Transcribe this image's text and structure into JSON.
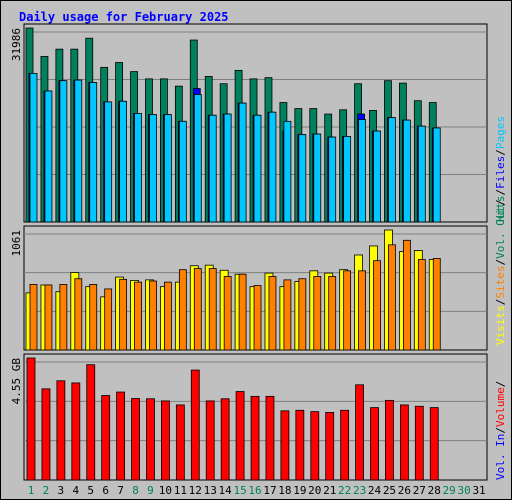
{
  "title": "Daily usage for February 2025",
  "colors": {
    "hits": "#00805c",
    "files": "#0000ff",
    "pages": "#00c8ff",
    "visits": "#ffff00",
    "sites": "#ff8000",
    "kbytes": "#ff0000",
    "weekend_label": "#00805c",
    "weekday_label": "#000000"
  },
  "chart_data": [
    {
      "type": "bar",
      "name": "hits-files-pages",
      "categories": [
        "1",
        "2",
        "3",
        "4",
        "5",
        "6",
        "7",
        "8",
        "9",
        "10",
        "11",
        "12",
        "13",
        "14",
        "15",
        "16",
        "17",
        "18",
        "19",
        "20",
        "21",
        "22",
        "23",
        "24",
        "25",
        "26",
        "27",
        "28",
        "29",
        "30",
        "31"
      ],
      "y_max_label": "31986",
      "ylim": [
        0,
        31986
      ],
      "series": [
        {
          "name": "Hits",
          "values": [
            31986,
            27300,
            28500,
            28500,
            30300,
            25500,
            26300,
            24800,
            23600,
            23600,
            22400,
            30000,
            24000,
            22800,
            25000,
            23600,
            23800,
            19700,
            18700,
            18700,
            17800,
            18500,
            22800,
            18400,
            23300,
            22900,
            20000,
            19700,
            null,
            null,
            null
          ]
        },
        {
          "name": "Files",
          "values": [
            24500,
            21600,
            23300,
            23400,
            23000,
            19800,
            19900,
            17900,
            17700,
            17700,
            16600,
            22000,
            17600,
            17800,
            19600,
            17600,
            18100,
            15000,
            14400,
            14500,
            14000,
            14100,
            17800,
            15000,
            17200,
            16800,
            15800,
            15500,
            null,
            null,
            null
          ]
        },
        {
          "name": "Pages",
          "values": [
            24500,
            21600,
            23300,
            23400,
            23000,
            19800,
            19900,
            17900,
            17700,
            17700,
            16600,
            21000,
            17600,
            17800,
            19600,
            17600,
            18100,
            16600,
            14400,
            14500,
            14000,
            14100,
            16900,
            15000,
            17200,
            16800,
            15800,
            15500,
            null,
            null,
            null
          ]
        }
      ]
    },
    {
      "type": "bar",
      "name": "visits-sites",
      "categories": [
        "1",
        "2",
        "3",
        "4",
        "5",
        "6",
        "7",
        "8",
        "9",
        "10",
        "11",
        "12",
        "13",
        "14",
        "15",
        "16",
        "17",
        "18",
        "19",
        "20",
        "21",
        "22",
        "23",
        "24",
        "25",
        "26",
        "27",
        "28",
        "29",
        "30",
        "31"
      ],
      "y_max_label": "1061",
      "ylim": [
        0,
        1061
      ],
      "series": [
        {
          "name": "Visits",
          "values": [
            505,
            575,
            515,
            685,
            560,
            470,
            645,
            615,
            620,
            560,
            600,
            745,
            750,
            705,
            670,
            560,
            680,
            560,
            605,
            700,
            680,
            710,
            840,
            920,
            1061,
            870,
            880,
            800,
            null,
            null,
            null
          ]
        },
        {
          "name": "Sites",
          "values": [
            580,
            575,
            580,
            630,
            580,
            540,
            625,
            600,
            610,
            600,
            710,
            720,
            720,
            650,
            670,
            570,
            650,
            620,
            630,
            650,
            650,
            700,
            700,
            790,
            930,
            970,
            800,
            810,
            null,
            null,
            null
          ]
        }
      ]
    },
    {
      "type": "bar",
      "name": "volume",
      "categories": [
        "1",
        "2",
        "3",
        "4",
        "5",
        "6",
        "7",
        "8",
        "9",
        "10",
        "11",
        "12",
        "13",
        "14",
        "15",
        "16",
        "17",
        "18",
        "19",
        "20",
        "21",
        "22",
        "23",
        "24",
        "25",
        "26",
        "27",
        "28",
        "29",
        "30",
        "31"
      ],
      "y_max_label": "4.55 GB",
      "ylim": [
        0,
        4.55
      ],
      "series": [
        {
          "name": "Volume",
          "values": [
            4.55,
            3.4,
            3.7,
            3.62,
            4.3,
            3.15,
            3.28,
            3.04,
            3.03,
            2.95,
            2.8,
            4.1,
            2.95,
            3.03,
            3.3,
            3.12,
            3.12,
            2.58,
            2.6,
            2.55,
            2.52,
            2.6,
            3.55,
            2.7,
            2.97,
            2.8,
            2.75,
            2.7,
            null,
            null,
            null
          ]
        }
      ]
    }
  ],
  "legend": {
    "top": [
      "Hits",
      "/",
      "Files",
      "/",
      "Pages"
    ],
    "middle": [
      "Visits",
      "/",
      "Sites",
      "/",
      "Vol. Out",
      "/"
    ],
    "bottom": [
      "Vol. In",
      "/",
      "Volume",
      "/"
    ]
  },
  "x_labels": [
    {
      "day": "1",
      "weekend": true
    },
    {
      "day": "2",
      "weekend": true
    },
    {
      "day": "3",
      "weekend": false
    },
    {
      "day": "4",
      "weekend": false
    },
    {
      "day": "5",
      "weekend": false
    },
    {
      "day": "6",
      "weekend": false
    },
    {
      "day": "7",
      "weekend": false
    },
    {
      "day": "8",
      "weekend": true
    },
    {
      "day": "9",
      "weekend": true
    },
    {
      "day": "10",
      "weekend": false
    },
    {
      "day": "11",
      "weekend": false
    },
    {
      "day": "12",
      "weekend": false
    },
    {
      "day": "13",
      "weekend": false
    },
    {
      "day": "14",
      "weekend": false
    },
    {
      "day": "15",
      "weekend": true
    },
    {
      "day": "16",
      "weekend": true
    },
    {
      "day": "17",
      "weekend": false
    },
    {
      "day": "18",
      "weekend": false
    },
    {
      "day": "19",
      "weekend": false
    },
    {
      "day": "20",
      "weekend": false
    },
    {
      "day": "21",
      "weekend": false
    },
    {
      "day": "22",
      "weekend": true
    },
    {
      "day": "23",
      "weekend": true
    },
    {
      "day": "24",
      "weekend": false
    },
    {
      "day": "25",
      "weekend": false
    },
    {
      "day": "26",
      "weekend": false
    },
    {
      "day": "27",
      "weekend": false
    },
    {
      "day": "28",
      "weekend": false
    },
    {
      "day": "29",
      "weekend": true
    },
    {
      "day": "30",
      "weekend": true
    },
    {
      "day": "31",
      "weekend": false
    }
  ]
}
